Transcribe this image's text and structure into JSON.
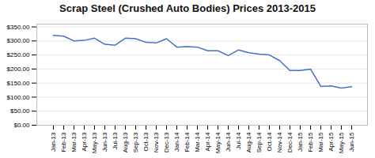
{
  "chart_data": {
    "type": "line",
    "title": "Scrap Steel (Crushed Auto Bodies) Prices 2013-2015",
    "categories": [
      "Jan-13",
      "Feb-13",
      "Mar-13",
      "Apr-13",
      "May-13",
      "Jun-13",
      "Jul-13",
      "Aug-13",
      "Sep-13",
      "Oct-13",
      "Nov-13",
      "Dec-13",
      "Jan-14",
      "Feb-14",
      "Mar-14",
      "Apr-14",
      "May-14",
      "Jun-14",
      "Jul-14",
      "Aug-14",
      "Sep-14",
      "Oct-14",
      "Nov-14",
      "Dec-14",
      "Jan-15",
      "Feb-15",
      "Mar-15",
      "Apr-15",
      "May-15",
      "Jun-15"
    ],
    "values": [
      320,
      317,
      300,
      302,
      310,
      288,
      285,
      310,
      308,
      295,
      293,
      308,
      278,
      280,
      278,
      265,
      265,
      248,
      268,
      258,
      253,
      250,
      230,
      195,
      195,
      200,
      138,
      140,
      132,
      137
    ],
    "color": "#4472C4",
    "ylim": [
      0,
      360
    ],
    "yticks": [
      {
        "value": 0,
        "label": "$0.00"
      },
      {
        "value": 50,
        "label": "$50.00"
      },
      {
        "value": 100,
        "label": "$100.00"
      },
      {
        "value": 150,
        "label": "$150.00"
      },
      {
        "value": 200,
        "label": "$200.00"
      },
      {
        "value": 250,
        "label": "$250.00"
      },
      {
        "value": 300,
        "label": "$300.00"
      },
      {
        "value": 350,
        "label": "$350.00"
      }
    ],
    "grid": true
  }
}
